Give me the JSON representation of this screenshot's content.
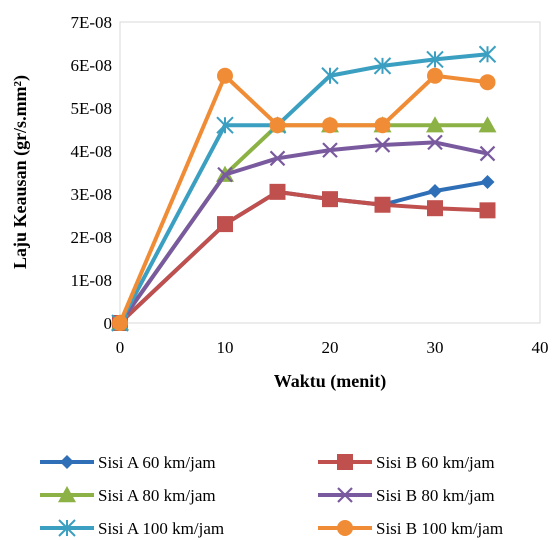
{
  "chart_data": {
    "type": "line",
    "title": "",
    "xlabel": "Waktu (menit)",
    "ylabel": "Laju Keausan (gr/s.mm²)",
    "xlim": [
      0,
      40
    ],
    "ylim": [
      0,
      7e-08
    ],
    "x_ticks": [
      0,
      10,
      20,
      30,
      40
    ],
    "x_tick_labels": [
      "0",
      "10",
      "20",
      "30",
      "40"
    ],
    "y_ticks": [
      0,
      1e-08,
      2e-08,
      3e-08,
      4e-08,
      5e-08,
      6e-08,
      7e-08
    ],
    "y_tick_labels": [
      "0",
      "1E-08",
      "2E-08",
      "3E-08",
      "4E-08",
      "5E-08",
      "6E-08",
      "7E-08"
    ],
    "grid": false,
    "legend_position": "bottom",
    "series": [
      {
        "name": "Sisi A 60 km/jam",
        "color": "#2e6fb7",
        "marker": "diamond",
        "x": [
          0,
          10,
          15,
          20,
          25,
          30,
          35
        ],
        "y": [
          0,
          2.3e-08,
          3.05e-08,
          2.88e-08,
          2.75e-08,
          3.07e-08,
          3.28e-08
        ]
      },
      {
        "name": "Sisi B 60 km/jam",
        "color": "#c0504d",
        "marker": "square",
        "x": [
          0,
          10,
          15,
          20,
          25,
          30,
          35
        ],
        "y": [
          0,
          2.3e-08,
          3.05e-08,
          2.88e-08,
          2.75e-08,
          2.67e-08,
          2.62e-08
        ]
      },
      {
        "name": "Sisi A 80 km/jam",
        "color": "#8cb245",
        "marker": "triangle",
        "x": [
          0,
          10,
          15,
          20,
          25,
          30,
          35
        ],
        "y": [
          0,
          3.45e-08,
          4.6e-08,
          4.6e-08,
          4.6e-08,
          4.6e-08,
          4.6e-08
        ]
      },
      {
        "name": "Sisi B 80 km/jam",
        "color": "#7a5a9e",
        "marker": "x",
        "x": [
          0,
          10,
          15,
          20,
          25,
          30,
          35
        ],
        "y": [
          0,
          3.45e-08,
          3.83e-08,
          4.02e-08,
          4.14e-08,
          4.2e-08,
          3.94e-08
        ]
      },
      {
        "name": "Sisi A 100 km/jam",
        "color": "#3a9fc0",
        "marker": "star",
        "x": [
          0,
          10,
          15,
          20,
          25,
          30,
          35
        ],
        "y": [
          0,
          4.6e-08,
          4.6e-08,
          5.75e-08,
          5.98e-08,
          6.13e-08,
          6.25e-08
        ]
      },
      {
        "name": "Sisi B 100 km/jam",
        "color": "#f08c35",
        "marker": "circle",
        "x": [
          0,
          10,
          15,
          20,
          25,
          30,
          35
        ],
        "y": [
          0,
          5.75e-08,
          4.6e-08,
          4.6e-08,
          4.6e-08,
          5.75e-08,
          5.6e-08
        ]
      }
    ]
  }
}
